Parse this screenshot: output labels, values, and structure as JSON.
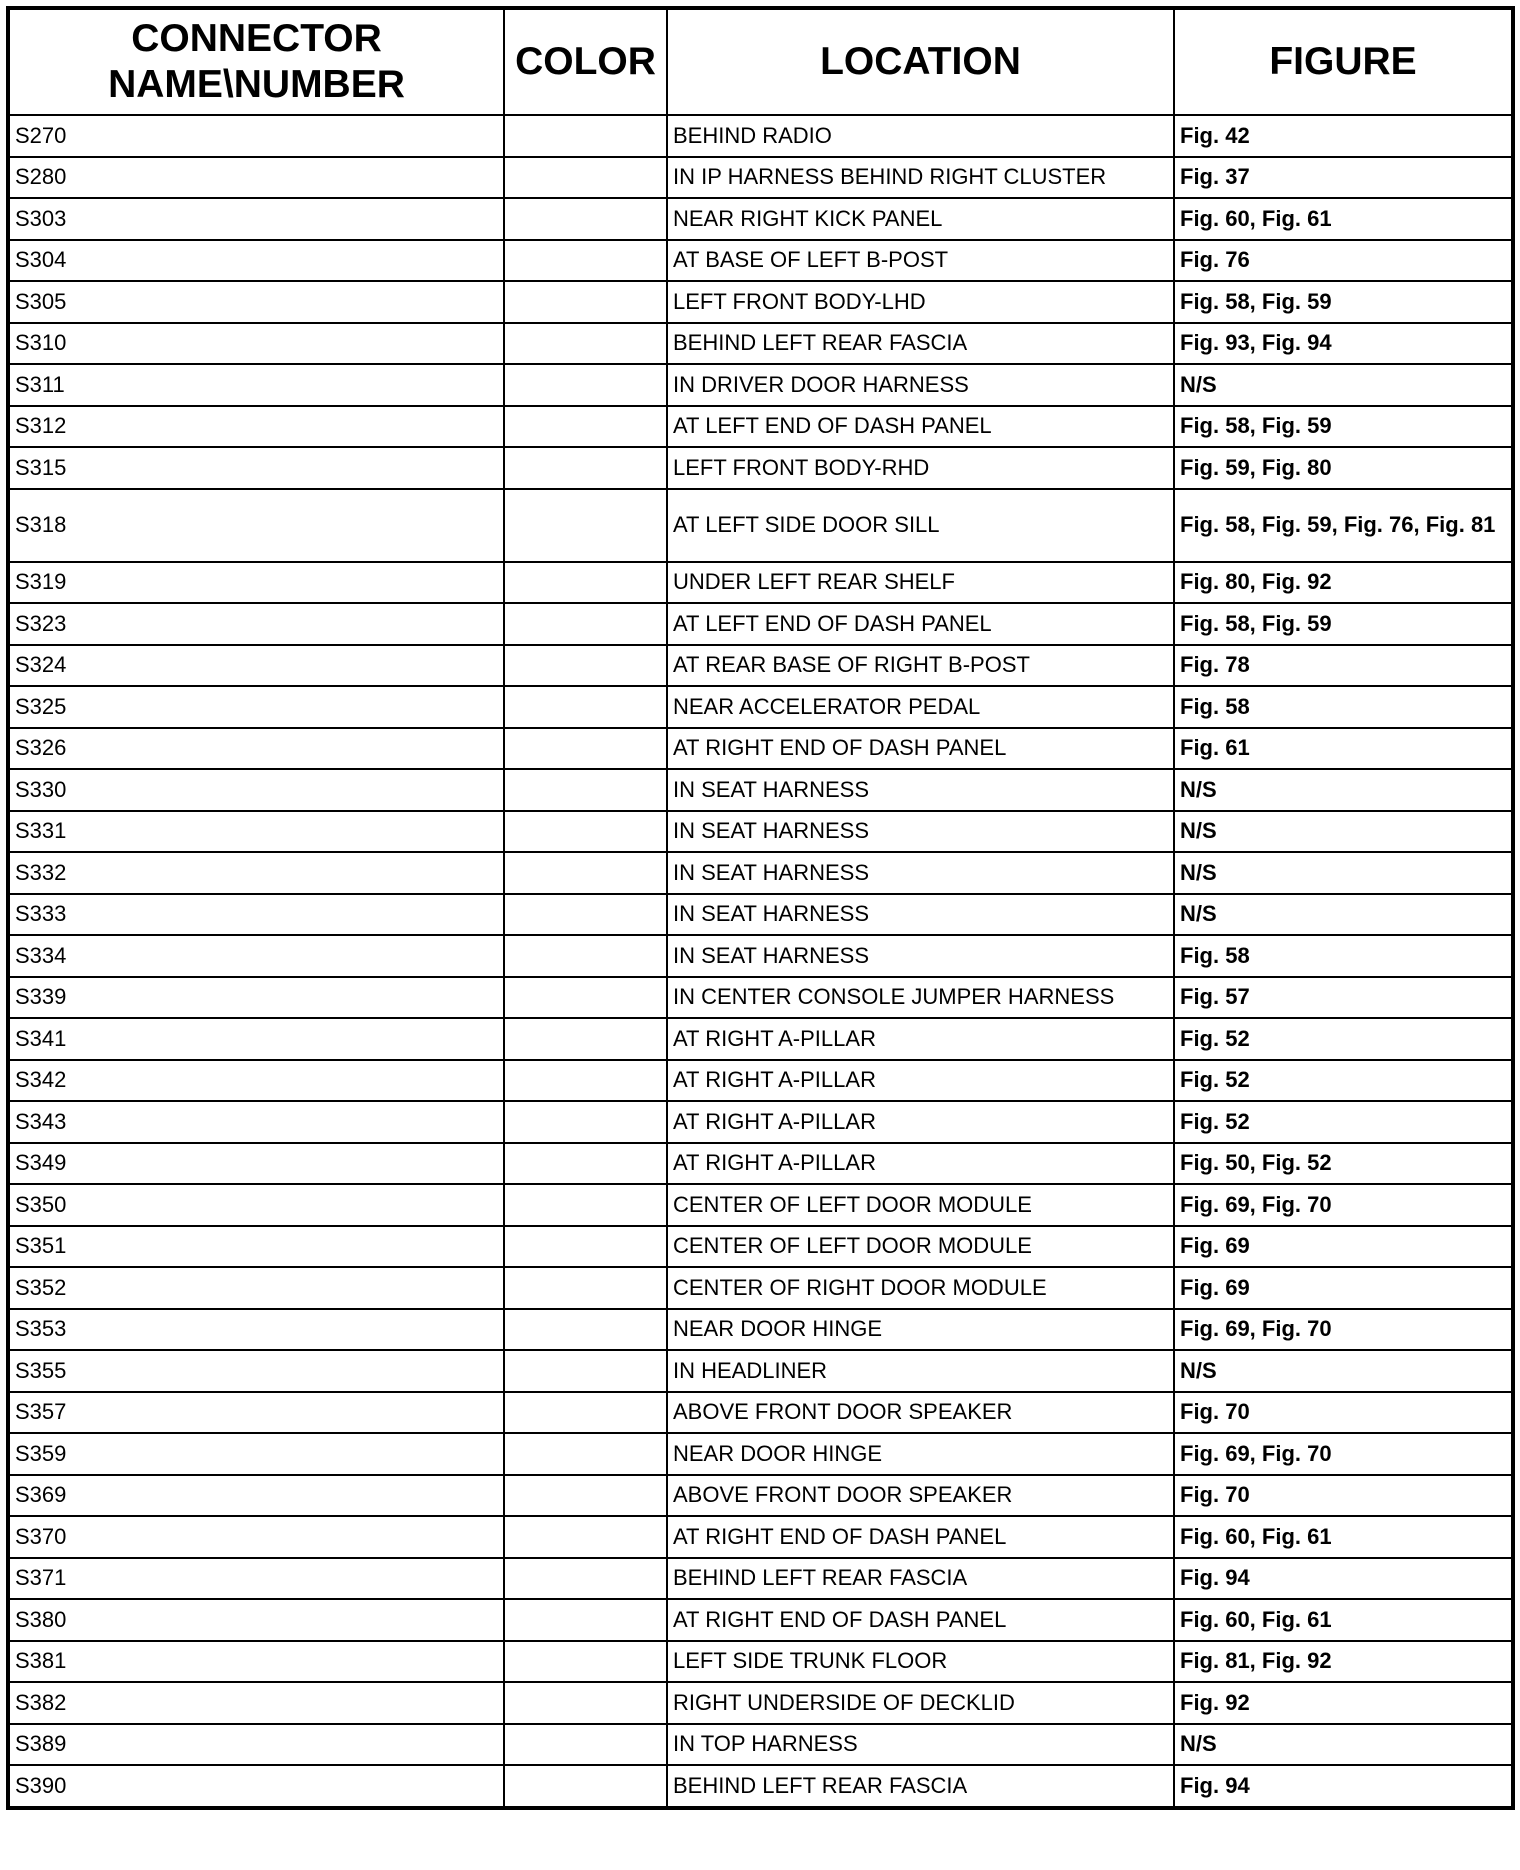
{
  "headers": {
    "connector": "CONNECTOR NAME\\NUMBER",
    "color": "COLOR",
    "location": "LOCATION",
    "figure": "FIGURE"
  },
  "rows": [
    {
      "connector": "S270",
      "color": "",
      "location": "BEHIND RADIO",
      "figure": "Fig. 42"
    },
    {
      "connector": "S280",
      "color": "",
      "location": "IN IP HARNESS BEHIND RIGHT CLUSTER",
      "figure": "Fig. 37"
    },
    {
      "connector": "S303",
      "color": "",
      "location": "NEAR RIGHT KICK PANEL",
      "figure": "Fig. 60, Fig. 61"
    },
    {
      "connector": "S304",
      "color": "",
      "location": "AT BASE OF LEFT B-POST",
      "figure": "Fig. 76"
    },
    {
      "connector": "S305",
      "color": "",
      "location": "LEFT FRONT BODY-LHD",
      "figure": "Fig. 58, Fig. 59"
    },
    {
      "connector": "S310",
      "color": "",
      "location": "BEHIND LEFT REAR FASCIA",
      "figure": "Fig. 93, Fig. 94"
    },
    {
      "connector": "S311",
      "color": "",
      "location": "IN DRIVER DOOR HARNESS",
      "figure": "N/S"
    },
    {
      "connector": "S312",
      "color": "",
      "location": "AT LEFT END OF DASH PANEL",
      "figure": "Fig. 58, Fig. 59"
    },
    {
      "connector": "S315",
      "color": "",
      "location": "LEFT FRONT BODY-RHD",
      "figure": "Fig. 59, Fig. 80"
    },
    {
      "connector": "S318",
      "color": "",
      "location": "AT LEFT SIDE DOOR SILL",
      "figure": "Fig. 58, Fig. 59, Fig. 76, Fig. 81"
    },
    {
      "connector": "S319",
      "color": "",
      "location": "UNDER LEFT REAR SHELF",
      "figure": "Fig. 80, Fig. 92"
    },
    {
      "connector": "S323",
      "color": "",
      "location": "AT LEFT END OF DASH PANEL",
      "figure": "Fig. 58, Fig. 59"
    },
    {
      "connector": "S324",
      "color": "",
      "location": "AT REAR BASE OF RIGHT B-POST",
      "figure": "Fig. 78"
    },
    {
      "connector": "S325",
      "color": "",
      "location": "NEAR ACCELERATOR PEDAL",
      "figure": "Fig. 58"
    },
    {
      "connector": "S326",
      "color": "",
      "location": "AT RIGHT END OF DASH PANEL",
      "figure": "Fig. 61"
    },
    {
      "connector": "S330",
      "color": "",
      "location": "IN SEAT HARNESS",
      "figure": "N/S"
    },
    {
      "connector": "S331",
      "color": "",
      "location": "IN SEAT HARNESS",
      "figure": "N/S"
    },
    {
      "connector": "S332",
      "color": "",
      "location": "IN SEAT HARNESS",
      "figure": "N/S"
    },
    {
      "connector": "S333",
      "color": "",
      "location": "IN SEAT HARNESS",
      "figure": "N/S"
    },
    {
      "connector": "S334",
      "color": "",
      "location": "IN SEAT HARNESS",
      "figure": "Fig. 58"
    },
    {
      "connector": "S339",
      "color": "",
      "location": "IN CENTER CONSOLE JUMPER HARNESS",
      "figure": "Fig. 57"
    },
    {
      "connector": "S341",
      "color": "",
      "location": "AT RIGHT A-PILLAR",
      "figure": "Fig. 52"
    },
    {
      "connector": "S342",
      "color": "",
      "location": "AT RIGHT A-PILLAR",
      "figure": "Fig. 52"
    },
    {
      "connector": "S343",
      "color": "",
      "location": "AT RIGHT A-PILLAR",
      "figure": "Fig. 52"
    },
    {
      "connector": "S349",
      "color": "",
      "location": "AT RIGHT A-PILLAR",
      "figure": "Fig. 50, Fig. 52"
    },
    {
      "connector": "S350",
      "color": "",
      "location": "CENTER OF LEFT DOOR MODULE",
      "figure": "Fig. 69, Fig. 70"
    },
    {
      "connector": "S351",
      "color": "",
      "location": "CENTER OF LEFT DOOR MODULE",
      "figure": "Fig. 69"
    },
    {
      "connector": "S352",
      "color": "",
      "location": "CENTER OF RIGHT DOOR MODULE",
      "figure": "Fig. 69"
    },
    {
      "connector": "S353",
      "color": "",
      "location": "NEAR DOOR HINGE",
      "figure": "Fig. 69, Fig. 70"
    },
    {
      "connector": "S355",
      "color": "",
      "location": "IN HEADLINER",
      "figure": "N/S"
    },
    {
      "connector": "S357",
      "color": "",
      "location": "ABOVE FRONT DOOR SPEAKER",
      "figure": "Fig. 70"
    },
    {
      "connector": "S359",
      "color": "",
      "location": "NEAR DOOR HINGE",
      "figure": "Fig. 69, Fig. 70"
    },
    {
      "connector": "S369",
      "color": "",
      "location": "ABOVE FRONT DOOR SPEAKER",
      "figure": "Fig. 70"
    },
    {
      "connector": "S370",
      "color": "",
      "location": "AT RIGHT END OF DASH PANEL",
      "figure": "Fig. 60, Fig. 61"
    },
    {
      "connector": "S371",
      "color": "",
      "location": "BEHIND LEFT REAR FASCIA",
      "figure": "Fig. 94"
    },
    {
      "connector": "S380",
      "color": "",
      "location": "AT RIGHT END OF DASH PANEL",
      "figure": "Fig. 60, Fig. 61"
    },
    {
      "connector": "S381",
      "color": "",
      "location": "LEFT SIDE TRUNK FLOOR",
      "figure": "Fig. 81, Fig. 92"
    },
    {
      "connector": "S382",
      "color": "",
      "location": "RIGHT UNDERSIDE OF DECKLID",
      "figure": "Fig. 92"
    },
    {
      "connector": "S389",
      "color": "",
      "location": "IN TOP HARNESS",
      "figure": "N/S"
    },
    {
      "connector": "S390",
      "color": "",
      "location": "BEHIND LEFT REAR FASCIA",
      "figure": "Fig. 94"
    }
  ]
}
